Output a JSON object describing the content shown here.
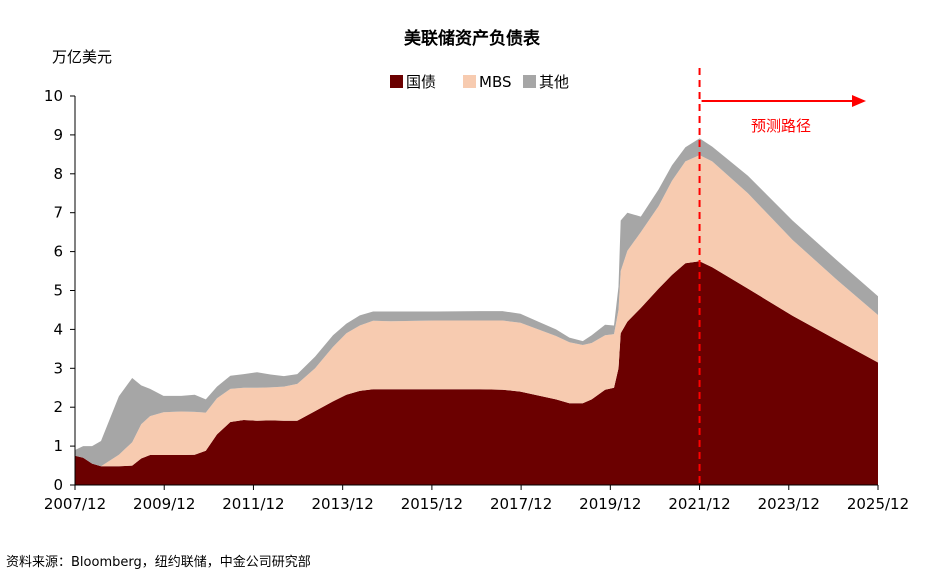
{
  "source": "资料来源：Bloomberg，纽约联储，中金公司研究部",
  "chart_data": {
    "type": "area",
    "stacked": true,
    "title": "美联储资产负债表",
    "ylabel": "万亿美元",
    "ylim": [
      0,
      10
    ],
    "yticks": [
      "0",
      "1",
      "2",
      "3",
      "4",
      "5",
      "6",
      "7",
      "8",
      "9",
      "10"
    ],
    "xlim": [
      2007.917,
      2025.917
    ],
    "xticks": [
      {
        "x": 2007.917,
        "label": "2007/12"
      },
      {
        "x": 2009.917,
        "label": "2009/12"
      },
      {
        "x": 2011.917,
        "label": "2011/12"
      },
      {
        "x": 2013.917,
        "label": "2013/12"
      },
      {
        "x": 2015.917,
        "label": "2015/12"
      },
      {
        "x": 2017.917,
        "label": "2017/12"
      },
      {
        "x": 2019.917,
        "label": "2019/12"
      },
      {
        "x": 2021.917,
        "label": "2021/12"
      },
      {
        "x": 2023.917,
        "label": "2023/12"
      },
      {
        "x": 2025.917,
        "label": "2025/12"
      }
    ],
    "legend_position": "top-center",
    "series": [
      {
        "name": "国债",
        "color": "#6b0000",
        "points": [
          [
            2007.917,
            0.75
          ],
          [
            2008.1,
            0.7
          ],
          [
            2008.3,
            0.55
          ],
          [
            2008.5,
            0.48
          ],
          [
            2008.9,
            0.48
          ],
          [
            2009.2,
            0.5
          ],
          [
            2009.4,
            0.68
          ],
          [
            2009.6,
            0.77
          ],
          [
            2009.9,
            0.77
          ],
          [
            2010.3,
            0.77
          ],
          [
            2010.6,
            0.78
          ],
          [
            2010.85,
            0.88
          ],
          [
            2011.1,
            1.3
          ],
          [
            2011.4,
            1.62
          ],
          [
            2011.7,
            1.67
          ],
          [
            2012.0,
            1.65
          ],
          [
            2012.3,
            1.66
          ],
          [
            2012.6,
            1.65
          ],
          [
            2012.9,
            1.65
          ],
          [
            2013.3,
            1.9
          ],
          [
            2013.7,
            2.15
          ],
          [
            2014.0,
            2.32
          ],
          [
            2014.3,
            2.42
          ],
          [
            2014.6,
            2.46
          ],
          [
            2015.0,
            2.46
          ],
          [
            2016.0,
            2.46
          ],
          [
            2017.0,
            2.46
          ],
          [
            2017.5,
            2.45
          ],
          [
            2017.9,
            2.4
          ],
          [
            2018.3,
            2.3
          ],
          [
            2018.7,
            2.2
          ],
          [
            2019.0,
            2.1
          ],
          [
            2019.3,
            2.1
          ],
          [
            2019.5,
            2.2
          ],
          [
            2019.8,
            2.45
          ],
          [
            2020.0,
            2.5
          ],
          [
            2020.1,
            3.0
          ],
          [
            2020.15,
            3.9
          ],
          [
            2020.3,
            4.2
          ],
          [
            2020.6,
            4.55
          ],
          [
            2021.0,
            5.05
          ],
          [
            2021.3,
            5.4
          ],
          [
            2021.6,
            5.7
          ],
          [
            2021.917,
            5.75
          ],
          [
            2022.2,
            5.6
          ],
          [
            2023.0,
            5.05
          ],
          [
            2024.0,
            4.35
          ],
          [
            2025.0,
            3.72
          ],
          [
            2025.917,
            3.15
          ]
        ]
      },
      {
        "name": "MBS",
        "color": "#f7cbb0",
        "points": [
          [
            2007.917,
            0
          ],
          [
            2008.3,
            0
          ],
          [
            2008.7,
            0
          ],
          [
            2008.9,
            0
          ],
          [
            2009.1,
            0.3
          ],
          [
            2009.3,
            0.6
          ],
          [
            2009.5,
            0.88
          ],
          [
            2009.7,
            1.0
          ],
          [
            2009.9,
            1.1
          ],
          [
            2010.2,
            1.12
          ],
          [
            2010.6,
            1.1
          ],
          [
            2010.85,
            0.98
          ],
          [
            2011.1,
            0.93
          ],
          [
            2011.4,
            0.85
          ],
          [
            2011.7,
            0.83
          ],
          [
            2012.0,
            0.85
          ],
          [
            2012.3,
            0.85
          ],
          [
            2012.6,
            0.88
          ],
          [
            2012.9,
            0.95
          ],
          [
            2013.3,
            1.1
          ],
          [
            2013.7,
            1.4
          ],
          [
            2014.0,
            1.58
          ],
          [
            2014.3,
            1.68
          ],
          [
            2014.6,
            1.76
          ],
          [
            2015.0,
            1.75
          ],
          [
            2016.0,
            1.77
          ],
          [
            2017.0,
            1.77
          ],
          [
            2017.5,
            1.78
          ],
          [
            2017.9,
            1.77
          ],
          [
            2018.3,
            1.7
          ],
          [
            2018.7,
            1.63
          ],
          [
            2019.0,
            1.57
          ],
          [
            2019.3,
            1.5
          ],
          [
            2019.5,
            1.45
          ],
          [
            2019.8,
            1.4
          ],
          [
            2020.0,
            1.38
          ],
          [
            2020.1,
            1.5
          ],
          [
            2020.15,
            1.6
          ],
          [
            2020.3,
            1.82
          ],
          [
            2020.6,
            1.95
          ],
          [
            2021.0,
            2.12
          ],
          [
            2021.3,
            2.42
          ],
          [
            2021.6,
            2.62
          ],
          [
            2021.917,
            2.73
          ],
          [
            2022.2,
            2.72
          ],
          [
            2023.0,
            2.45
          ],
          [
            2024.0,
            1.95
          ],
          [
            2025.0,
            1.55
          ],
          [
            2025.917,
            1.22
          ]
        ]
      },
      {
        "name": "其他",
        "color": "#a6a6a6",
        "points": [
          [
            2007.917,
            0.15
          ],
          [
            2008.3,
            0.3
          ],
          [
            2008.7,
            0.45
          ],
          [
            2008.9,
            0.65
          ],
          [
            2009.1,
            1.5
          ],
          [
            2009.3,
            1.65
          ],
          [
            2009.5,
            1.0
          ],
          [
            2009.7,
            0.7
          ],
          [
            2009.9,
            0.42
          ],
          [
            2010.2,
            0.4
          ],
          [
            2010.6,
            0.44
          ],
          [
            2010.85,
            0.34
          ],
          [
            2011.1,
            0.3
          ],
          [
            2011.4,
            0.34
          ],
          [
            2011.7,
            0.35
          ],
          [
            2012.0,
            0.4
          ],
          [
            2012.3,
            0.33
          ],
          [
            2012.6,
            0.27
          ],
          [
            2012.9,
            0.25
          ],
          [
            2013.3,
            0.3
          ],
          [
            2013.7,
            0.3
          ],
          [
            2014.0,
            0.25
          ],
          [
            2014.3,
            0.26
          ],
          [
            2014.6,
            0.24
          ],
          [
            2015.0,
            0.25
          ],
          [
            2016.0,
            0.23
          ],
          [
            2017.0,
            0.24
          ],
          [
            2017.5,
            0.24
          ],
          [
            2017.9,
            0.23
          ],
          [
            2018.3,
            0.2
          ],
          [
            2018.7,
            0.17
          ],
          [
            2019.0,
            0.12
          ],
          [
            2019.3,
            0.1
          ],
          [
            2019.5,
            0.2
          ],
          [
            2019.8,
            0.27
          ],
          [
            2020.0,
            0.22
          ],
          [
            2020.1,
            0.6
          ],
          [
            2020.15,
            1.3
          ],
          [
            2020.3,
            0.98
          ],
          [
            2020.6,
            0.4
          ],
          [
            2021.0,
            0.43
          ],
          [
            2021.3,
            0.4
          ],
          [
            2021.6,
            0.36
          ],
          [
            2021.917,
            0.43
          ],
          [
            2022.2,
            0.38
          ],
          [
            2023.0,
            0.45
          ],
          [
            2024.0,
            0.5
          ],
          [
            2025.0,
            0.5
          ],
          [
            2025.917,
            0.48
          ]
        ]
      }
    ],
    "annotations": [
      {
        "text": "预测路径",
        "x": 2021.917,
        "color": "#ff0000",
        "style": "dashed vertical line with right arrow"
      }
    ]
  }
}
